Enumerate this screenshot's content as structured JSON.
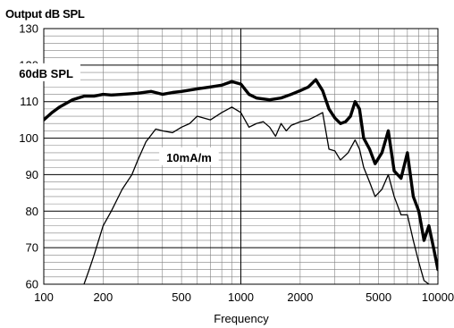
{
  "chart_data": {
    "type": "line",
    "ylabel": "Output dB SPL",
    "xlabel": "Frequency",
    "x_scale": "log",
    "xlim": [
      100,
      10000
    ],
    "ylim": [
      60,
      130
    ],
    "y_ticks": [
      60,
      70,
      80,
      90,
      100,
      110,
      120,
      130
    ],
    "x_ticks": [
      100,
      200,
      500,
      1000,
      2000,
      5000,
      10000
    ],
    "x_tick_labels": [
      "100",
      "200",
      "500",
      "1000",
      "2000",
      "5000",
      "10000"
    ],
    "grid": true,
    "series": [
      {
        "name": "60dB SPL",
        "color": "#000000",
        "weight": "bold",
        "x": [
          100,
          110,
          120,
          140,
          160,
          180,
          200,
          220,
          250,
          300,
          350,
          400,
          450,
          500,
          600,
          700,
          800,
          900,
          1000,
          1100,
          1200,
          1400,
          1600,
          1800,
          2000,
          2200,
          2400,
          2600,
          2800,
          3000,
          3200,
          3400,
          3600,
          3800,
          4000,
          4200,
          4500,
          4800,
          5200,
          5600,
          6000,
          6500,
          7000,
          7500,
          8000,
          8500,
          9000,
          9500,
          10000
        ],
        "y": [
          105,
          107,
          108.5,
          110.5,
          111.5,
          111.5,
          112,
          111.8,
          112,
          112.3,
          112.8,
          112,
          112.5,
          112.8,
          113.5,
          114,
          114.5,
          115.5,
          114.8,
          112,
          111,
          110.5,
          111,
          112,
          113,
          114,
          116,
          113,
          108,
          105.5,
          104,
          104.5,
          106,
          110,
          108,
          100,
          97,
          93,
          96,
          102,
          91,
          89,
          96,
          84,
          80,
          72,
          76,
          70,
          64
        ]
      },
      {
        "name": "10mA/m",
        "color": "#000000",
        "weight": "normal",
        "x": [
          160,
          170,
          180,
          200,
          220,
          250,
          280,
          300,
          330,
          370,
          400,
          450,
          500,
          550,
          600,
          700,
          800,
          900,
          1000,
          1100,
          1200,
          1300,
          1400,
          1500,
          1600,
          1700,
          1800,
          1900,
          2000,
          2200,
          2400,
          2600,
          2800,
          3000,
          3200,
          3500,
          3800,
          4000,
          4200,
          4500,
          4800,
          5200,
          5600,
          6000,
          6500,
          7000,
          7500,
          8000,
          8500,
          9000
        ],
        "y": [
          60,
          64,
          68,
          76,
          80,
          86,
          90,
          94,
          99,
          102.5,
          102,
          101.5,
          103,
          104,
          106,
          105,
          107,
          108.5,
          107,
          103,
          104,
          104.5,
          103,
          100.5,
          104,
          102,
          103.5,
          104,
          104.5,
          105,
          106,
          107,
          97,
          96.5,
          94,
          96,
          99.5,
          97,
          92,
          88,
          84,
          86,
          90,
          84,
          79,
          79,
          72,
          66,
          61,
          60
        ]
      }
    ]
  }
}
